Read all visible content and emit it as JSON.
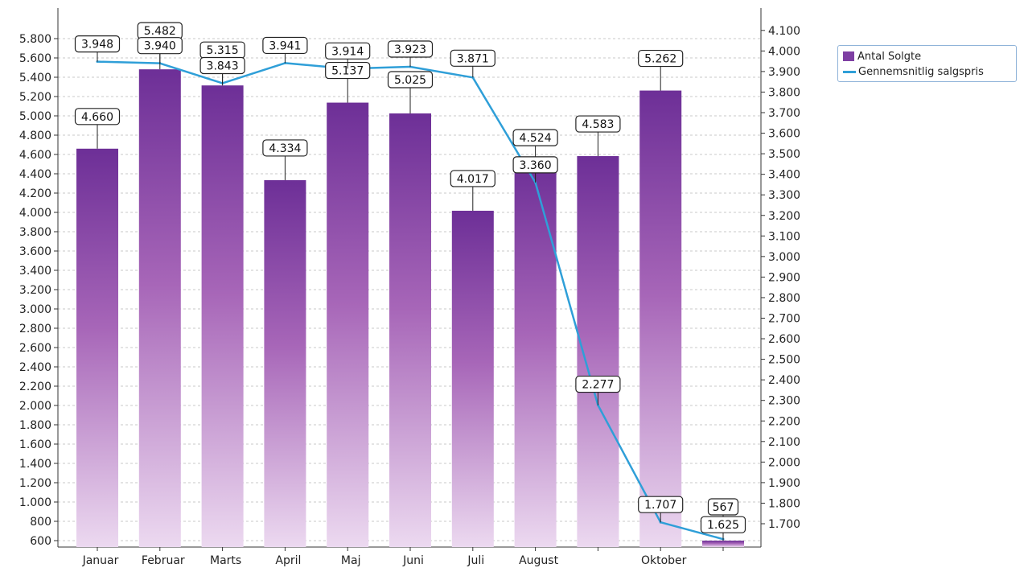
{
  "chart_data": {
    "type": "bar",
    "categories": [
      "Januar",
      "Februar",
      "Marts",
      "April",
      "Maj",
      "Juni",
      "Juli",
      "August",
      "",
      "Oktober",
      ""
    ],
    "series": [
      {
        "name": "Antal Solgte",
        "type": "bar",
        "axis": "left",
        "values": [
          4660,
          5482,
          5315,
          4334,
          5137,
          5025,
          4017,
          4524,
          4583,
          5262,
          567
        ],
        "labels": [
          "4.660",
          "5.482",
          "5.315",
          "4.334",
          "5.137",
          "5.025",
          "4.017",
          "4.524",
          "4.583",
          "5.262",
          "567"
        ],
        "color": "#7e3fa3"
      },
      {
        "name": "Gennemsnitlig salgspris",
        "type": "line",
        "axis": "right",
        "values": [
          3948,
          3940,
          3843,
          3941,
          3914,
          3923,
          3871,
          3360,
          2277,
          1707,
          1625
        ],
        "labels": [
          "3.948",
          "3.940",
          "3.843",
          "3.941",
          "3.914",
          "3.923",
          "3.871",
          "3.360",
          "2.277",
          "1.707",
          "1.625"
        ],
        "color": "#2f9fd8"
      }
    ],
    "y_left": {
      "min": 600,
      "max": 5800,
      "step": 200,
      "ticks": [
        "600",
        "800",
        "1.000",
        "1.200",
        "1.400",
        "1.600",
        "1.800",
        "2.000",
        "2.200",
        "2.400",
        "2.600",
        "2.800",
        "3.000",
        "3.200",
        "3.400",
        "3.600",
        "3.800",
        "4.000",
        "4.200",
        "4.400",
        "4.600",
        "4.800",
        "5.000",
        "5.200",
        "5.400",
        "5.600",
        "5.800"
      ]
    },
    "y_right": {
      "min": 1700,
      "max": 4100,
      "step": 100,
      "ticks": [
        "1.700",
        "1.800",
        "1.900",
        "2.000",
        "2.100",
        "2.200",
        "2.300",
        "2.400",
        "2.500",
        "2.600",
        "2.700",
        "2.800",
        "2.900",
        "3.000",
        "3.100",
        "3.200",
        "3.300",
        "3.400",
        "3.500",
        "3.600",
        "3.700",
        "3.800",
        "3.900",
        "4.000",
        "4.100"
      ]
    },
    "grid": true,
    "legend": "top-right",
    "title": "",
    "xlabel": "",
    "ylabel": ""
  },
  "legend": {
    "items": [
      {
        "label": "Antal Solgte",
        "color": "#7e3fa3",
        "kind": "bar-swatch"
      },
      {
        "label": "Gennemsnitlig salgspris",
        "color": "#2f9fd8",
        "kind": "line-swatch"
      }
    ]
  }
}
